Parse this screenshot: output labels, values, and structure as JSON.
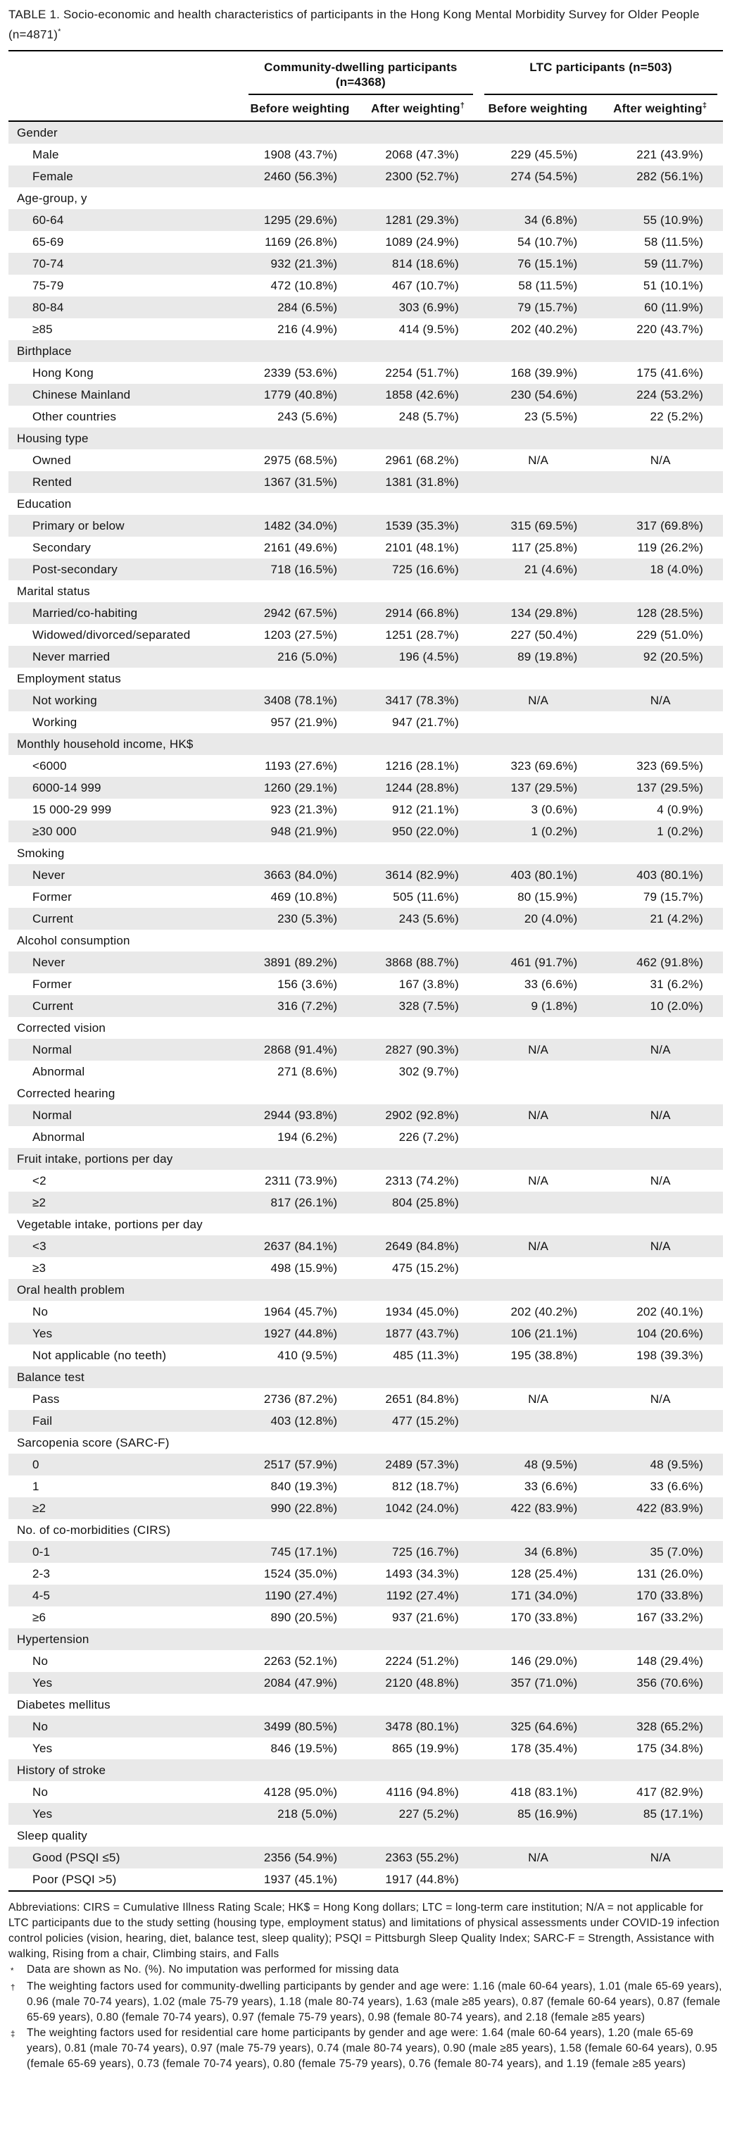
{
  "header": {
    "title_line1": "TABLE 1. Socio-economic and health characteristics of participants in the Hong Kong Mental Morbidity Survey for Older People",
    "title_line2": "(n=4871)",
    "title_marker": "*"
  },
  "table": {
    "groups": [
      {
        "label": "Community-dwelling participants (n=4368)",
        "subcols": [
          {
            "label": "Before weighting",
            "marker": ""
          },
          {
            "label": "After weighting",
            "marker": "†"
          }
        ]
      },
      {
        "label": "LTC participants (n=503)",
        "subcols": [
          {
            "label": "Before weighting",
            "marker": ""
          },
          {
            "label": "After weighting",
            "marker": "‡"
          }
        ]
      }
    ],
    "rows": [
      {
        "label": "Gender",
        "type": "category"
      },
      {
        "label": "Male",
        "type": "data",
        "values": [
          "1908 (43.7%)",
          "2068 (47.3%)",
          "229 (45.5%)",
          "221 (43.9%)"
        ]
      },
      {
        "label": "Female",
        "type": "data",
        "values": [
          "2460 (56.3%)",
          "2300 (52.7%)",
          "274 (54.5%)",
          "282 (56.1%)"
        ]
      },
      {
        "label": "Age-group, y",
        "type": "category"
      },
      {
        "label": "60-64",
        "type": "data",
        "values": [
          "1295 (29.6%)",
          "1281 (29.3%)",
          "34 (6.8%)",
          "55 (10.9%)"
        ]
      },
      {
        "label": "65-69",
        "type": "data",
        "values": [
          "1169 (26.8%)",
          "1089 (24.9%)",
          "54 (10.7%)",
          "58 (11.5%)"
        ]
      },
      {
        "label": "70-74",
        "type": "data",
        "values": [
          "932 (21.3%)",
          "814 (18.6%)",
          "76 (15.1%)",
          "59 (11.7%)"
        ]
      },
      {
        "label": "75-79",
        "type": "data",
        "values": [
          "472 (10.8%)",
          "467 (10.7%)",
          "58 (11.5%)",
          "51 (10.1%)"
        ]
      },
      {
        "label": "80-84",
        "type": "data",
        "values": [
          "284 (6.5%)",
          "303 (6.9%)",
          "79 (15.7%)",
          "60 (11.9%)"
        ]
      },
      {
        "label": "≥85",
        "type": "data",
        "values": [
          "216 (4.9%)",
          "414 (9.5%)",
          "202 (40.2%)",
          "220 (43.7%)"
        ]
      },
      {
        "label": "Birthplace",
        "type": "category"
      },
      {
        "label": "Hong Kong",
        "type": "data",
        "values": [
          "2339 (53.6%)",
          "2254 (51.7%)",
          "168 (39.9%)",
          "175 (41.6%)"
        ]
      },
      {
        "label": "Chinese Mainland",
        "type": "data",
        "values": [
          "1779 (40.8%)",
          "1858 (42.6%)",
          "230 (54.6%)",
          "224 (53.2%)"
        ]
      },
      {
        "label": "Other countries",
        "type": "data",
        "values": [
          "243 (5.6%)",
          "248 (5.7%)",
          "23 (5.5%)",
          "22 (5.2%)"
        ]
      },
      {
        "label": "Housing type",
        "type": "category"
      },
      {
        "label": "Owned",
        "type": "data",
        "values": [
          "2975 (68.5%)",
          "2961 (68.2%)",
          "N/A",
          "N/A"
        ]
      },
      {
        "label": "Rented",
        "type": "data",
        "values": [
          "1367 (31.5%)",
          "1381 (31.8%)",
          "",
          ""
        ]
      },
      {
        "label": "Education",
        "type": "category"
      },
      {
        "label": "Primary or below",
        "type": "data",
        "values": [
          "1482 (34.0%)",
          "1539 (35.3%)",
          "315 (69.5%)",
          "317 (69.8%)"
        ]
      },
      {
        "label": "Secondary",
        "type": "data",
        "values": [
          "2161 (49.6%)",
          "2101 (48.1%)",
          "117 (25.8%)",
          "119 (26.2%)"
        ]
      },
      {
        "label": "Post-secondary",
        "type": "data",
        "values": [
          "718 (16.5%)",
          "725 (16.6%)",
          "21 (4.6%)",
          "18 (4.0%)"
        ]
      },
      {
        "label": "Marital status",
        "type": "category"
      },
      {
        "label": "Married/co-habiting",
        "type": "data",
        "values": [
          "2942 (67.5%)",
          "2914 (66.8%)",
          "134 (29.8%)",
          "128 (28.5%)"
        ]
      },
      {
        "label": "Widowed/divorced/separated",
        "type": "data",
        "values": [
          "1203 (27.5%)",
          "1251 (28.7%)",
          "227 (50.4%)",
          "229 (51.0%)"
        ]
      },
      {
        "label": "Never married",
        "type": "data",
        "values": [
          "216 (5.0%)",
          "196 (4.5%)",
          "89 (19.8%)",
          "92 (20.5%)"
        ]
      },
      {
        "label": "Employment status",
        "type": "category"
      },
      {
        "label": "Not working",
        "type": "data",
        "values": [
          "3408 (78.1%)",
          "3417 (78.3%)",
          "N/A",
          "N/A"
        ]
      },
      {
        "label": "Working",
        "type": "data",
        "values": [
          "957 (21.9%)",
          "947 (21.7%)",
          "",
          ""
        ]
      },
      {
        "label": "Monthly household income, HK$",
        "type": "category"
      },
      {
        "label": "<6000",
        "type": "data",
        "values": [
          "1193 (27.6%)",
          "1216 (28.1%)",
          "323 (69.6%)",
          "323 (69.5%)"
        ]
      },
      {
        "label": "6000-14 999",
        "type": "data",
        "values": [
          "1260 (29.1%)",
          "1244 (28.8%)",
          "137 (29.5%)",
          "137 (29.5%)"
        ]
      },
      {
        "label": "15 000-29 999",
        "type": "data",
        "values": [
          "923 (21.3%)",
          "912 (21.1%)",
          "3 (0.6%)",
          "4 (0.9%)"
        ]
      },
      {
        "label": "≥30 000",
        "type": "data",
        "values": [
          "948 (21.9%)",
          "950 (22.0%)",
          "1 (0.2%)",
          "1 (0.2%)"
        ]
      },
      {
        "label": "Smoking",
        "type": "category"
      },
      {
        "label": "Never",
        "type": "data",
        "values": [
          "3663 (84.0%)",
          "3614 (82.9%)",
          "403 (80.1%)",
          "403 (80.1%)"
        ]
      },
      {
        "label": "Former",
        "type": "data",
        "values": [
          "469 (10.8%)",
          "505 (11.6%)",
          "80 (15.9%)",
          "79 (15.7%)"
        ]
      },
      {
        "label": "Current",
        "type": "data",
        "values": [
          "230 (5.3%)",
          "243 (5.6%)",
          "20 (4.0%)",
          "21 (4.2%)"
        ]
      },
      {
        "label": "Alcohol consumption",
        "type": "category"
      },
      {
        "label": "Never",
        "type": "data",
        "values": [
          "3891 (89.2%)",
          "3868 (88.7%)",
          "461 (91.7%)",
          "462 (91.8%)"
        ]
      },
      {
        "label": "Former",
        "type": "data",
        "values": [
          "156 (3.6%)",
          "167 (3.8%)",
          "33 (6.6%)",
          "31 (6.2%)"
        ]
      },
      {
        "label": "Current",
        "type": "data",
        "values": [
          "316 (7.2%)",
          "328 (7.5%)",
          "9 (1.8%)",
          "10 (2.0%)"
        ]
      },
      {
        "label": "Corrected vision",
        "type": "category"
      },
      {
        "label": "Normal",
        "type": "data",
        "values": [
          "2868 (91.4%)",
          "2827 (90.3%)",
          "N/A",
          "N/A"
        ]
      },
      {
        "label": "Abnormal",
        "type": "data",
        "values": [
          "271 (8.6%)",
          "302 (9.7%)",
          "",
          ""
        ]
      },
      {
        "label": "Corrected hearing",
        "type": "category"
      },
      {
        "label": "Normal",
        "type": "data",
        "values": [
          "2944 (93.8%)",
          "2902 (92.8%)",
          "N/A",
          "N/A"
        ]
      },
      {
        "label": "Abnormal",
        "type": "data",
        "values": [
          "194 (6.2%)",
          "226 (7.2%)",
          "",
          ""
        ]
      },
      {
        "label": "Fruit intake, portions per day",
        "type": "category"
      },
      {
        "label": "<2",
        "type": "data",
        "values": [
          "2311 (73.9%)",
          "2313 (74.2%)",
          "N/A",
          "N/A"
        ]
      },
      {
        "label": "≥2",
        "type": "data",
        "values": [
          "817 (26.1%)",
          "804 (25.8%)",
          "",
          ""
        ]
      },
      {
        "label": "Vegetable intake, portions per day",
        "type": "category"
      },
      {
        "label": "<3",
        "type": "data",
        "values": [
          "2637 (84.1%)",
          "2649 (84.8%)",
          "N/A",
          "N/A"
        ]
      },
      {
        "label": "≥3",
        "type": "data",
        "values": [
          "498 (15.9%)",
          "475 (15.2%)",
          "",
          ""
        ]
      },
      {
        "label": "Oral health problem",
        "type": "category"
      },
      {
        "label": "No",
        "type": "data",
        "values": [
          "1964 (45.7%)",
          "1934 (45.0%)",
          "202 (40.2%)",
          "202 (40.1%)"
        ]
      },
      {
        "label": "Yes",
        "type": "data",
        "values": [
          "1927 (44.8%)",
          "1877 (43.7%)",
          "106 (21.1%)",
          "104 (20.6%)"
        ]
      },
      {
        "label": "Not applicable (no teeth)",
        "type": "data",
        "values": [
          "410 (9.5%)",
          "485 (11.3%)",
          "195 (38.8%)",
          "198 (39.3%)"
        ]
      },
      {
        "label": "Balance test",
        "type": "category"
      },
      {
        "label": "Pass",
        "type": "data",
        "values": [
          "2736 (87.2%)",
          "2651 (84.8%)",
          "N/A",
          "N/A"
        ]
      },
      {
        "label": "Fail",
        "type": "data",
        "values": [
          "403 (12.8%)",
          "477 (15.2%)",
          "",
          ""
        ]
      },
      {
        "label": "Sarcopenia score (SARC-F)",
        "type": "category"
      },
      {
        "label": "0",
        "type": "data",
        "values": [
          "2517 (57.9%)",
          "2489 (57.3%)",
          "48 (9.5%)",
          "48 (9.5%)"
        ]
      },
      {
        "label": "1",
        "type": "data",
        "values": [
          "840 (19.3%)",
          "812 (18.7%)",
          "33 (6.6%)",
          "33 (6.6%)"
        ]
      },
      {
        "label": "≥2",
        "type": "data",
        "values": [
          "990 (22.8%)",
          "1042 (24.0%)",
          "422 (83.9%)",
          "422 (83.9%)"
        ]
      },
      {
        "label": "No. of co-morbidities (CIRS)",
        "type": "category"
      },
      {
        "label": "0-1",
        "type": "data",
        "values": [
          "745 (17.1%)",
          "725 (16.7%)",
          "34 (6.8%)",
          "35 (7.0%)"
        ]
      },
      {
        "label": "2-3",
        "type": "data",
        "values": [
          "1524 (35.0%)",
          "1493 (34.3%)",
          "128 (25.4%)",
          "131 (26.0%)"
        ]
      },
      {
        "label": "4-5",
        "type": "data",
        "values": [
          "1190 (27.4%)",
          "1192 (27.4%)",
          "171 (34.0%)",
          "170 (33.8%)"
        ]
      },
      {
        "label": "≥6",
        "type": "data",
        "values": [
          "890 (20.5%)",
          "937 (21.6%)",
          "170 (33.8%)",
          "167 (33.2%)"
        ]
      },
      {
        "label": "Hypertension",
        "type": "category"
      },
      {
        "label": "No",
        "type": "data",
        "values": [
          "2263 (52.1%)",
          "2224 (51.2%)",
          "146 (29.0%)",
          "148 (29.4%)"
        ]
      },
      {
        "label": "Yes",
        "type": "data",
        "values": [
          "2084 (47.9%)",
          "2120 (48.8%)",
          "357 (71.0%)",
          "356 (70.6%)"
        ]
      },
      {
        "label": "Diabetes mellitus",
        "type": "category"
      },
      {
        "label": "No",
        "type": "data",
        "values": [
          "3499 (80.5%)",
          "3478 (80.1%)",
          "325 (64.6%)",
          "328 (65.2%)"
        ]
      },
      {
        "label": "Yes",
        "type": "data",
        "values": [
          "846 (19.5%)",
          "865 (19.9%)",
          "178 (35.4%)",
          "175 (34.8%)"
        ]
      },
      {
        "label": "History of stroke",
        "type": "category"
      },
      {
        "label": "No",
        "type": "data",
        "values": [
          "4128 (95.0%)",
          "4116 (94.8%)",
          "418 (83.1%)",
          "417 (82.9%)"
        ]
      },
      {
        "label": "Yes",
        "type": "data",
        "values": [
          "218 (5.0%)",
          "227 (5.2%)",
          "85 (16.9%)",
          "85 (17.1%)"
        ]
      },
      {
        "label": "Sleep quality",
        "type": "category"
      },
      {
        "label": "Good (PSQI ≤5)",
        "type": "data",
        "values": [
          "2356 (54.9%)",
          "2363 (55.2%)",
          "N/A",
          "N/A"
        ]
      },
      {
        "label": "Poor (PSQI >5)",
        "type": "data",
        "values": [
          "1937 (45.1%)",
          "1917 (44.8%)",
          "",
          ""
        ]
      }
    ]
  },
  "footnotes": {
    "abbreviations": "Abbreviations: CIRS = Cumulative Illness Rating Scale; HK$ = Hong Kong dollars; LTC = long-term care institution; N/A = not applicable for LTC participants due to the study setting (housing type, employment status) and limitations of physical assessments under COVID-19 infection control policies (vision, hearing, diet, balance test, sleep quality); PSQI = Pittsburgh Sleep Quality Index; SARC-F = Strength, Assistance with walking, Rising from a chair, Climbing stairs, and Falls",
    "items": [
      {
        "marker": "*",
        "text": "Data are shown as No. (%). No imputation was performed for missing data"
      },
      {
        "marker": "†",
        "text": "The weighting factors used for community-dwelling participants by gender and age were: 1.16 (male 60-64 years), 1.01 (male 65-69 years), 0.96 (male 70-74 years), 1.02 (male 75-79 years), 1.18 (male 80-74 years), 1.63 (male ≥85 years), 0.87 (female 60-64 years), 0.87 (female 65-69 years), 0.80 (female 70-74 years), 0.97 (female 75-79 years), 0.98 (female 80-74 years), and 2.18 (female ≥85 years)"
      },
      {
        "marker": "‡",
        "text": "The weighting factors used for residential care home participants by gender and age were: 1.64 (male 60-64 years), 1.20 (male 65-69 years), 0.81 (male 70-74 years), 0.97 (male 75-79 years), 0.74 (male 80-74 years), 0.90 (male ≥85 years), 1.58 (female 60-64 years), 0.95 (female 65-69 years), 0.73 (female 70-74 years), 0.80 (female 75-79 years), 0.76 (female 80-74 years), and 1.19 (female ≥85 years)"
      }
    ]
  }
}
